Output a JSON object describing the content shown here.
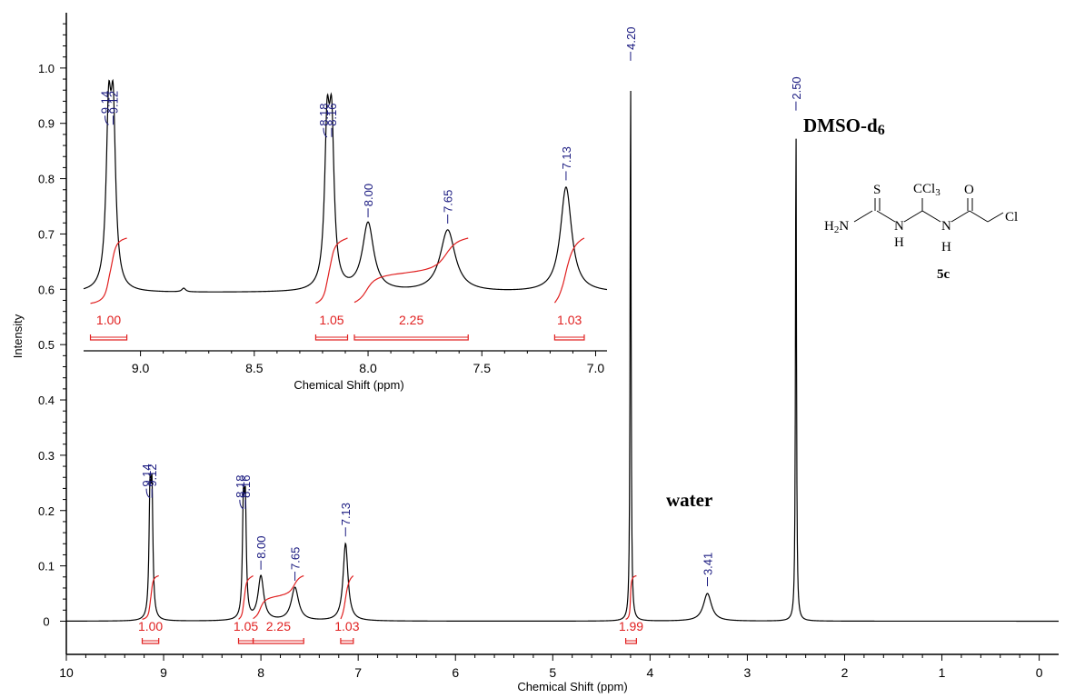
{
  "chart_data": [
    {
      "type": "line",
      "name": "main-spectrum",
      "xlabel": "Chemical Shift (ppm)",
      "ylabel": "Intensity",
      "xlim": [
        10.0,
        -0.2
      ],
      "ylim": [
        -0.06,
        1.1
      ],
      "x_ticks": [
        "10",
        "9",
        "8",
        "7",
        "6",
        "5",
        "4",
        "3",
        "2",
        "1",
        "0"
      ],
      "y_ticks": [
        "0",
        "0.1",
        "0.2",
        "0.3",
        "0.4",
        "0.5",
        "0.6",
        "0.7",
        "0.8",
        "0.9",
        "1.0"
      ],
      "peaks": [
        {
          "ppm": 9.14,
          "intensity": 0.21,
          "width": 0.012
        },
        {
          "ppm": 9.12,
          "intensity": 0.21,
          "width": 0.012
        },
        {
          "ppm": 8.18,
          "intensity": 0.19,
          "width": 0.012
        },
        {
          "ppm": 8.16,
          "intensity": 0.19,
          "width": 0.012
        },
        {
          "ppm": 8.0,
          "intensity": 0.08,
          "width": 0.035
        },
        {
          "ppm": 7.65,
          "intensity": 0.06,
          "width": 0.045
        },
        {
          "ppm": 7.13,
          "intensity": 0.14,
          "width": 0.03
        },
        {
          "ppm": 4.2,
          "intensity": 1.0,
          "width": 0.006
        },
        {
          "ppm": 3.41,
          "intensity": 0.05,
          "width": 0.05
        },
        {
          "ppm": 2.5,
          "intensity": 0.91,
          "width": 0.006
        }
      ],
      "peak_labels": [
        {
          "ppm": 9.14,
          "text": "9.14",
          "tilt": true
        },
        {
          "ppm": 9.12,
          "text": "9.12"
        },
        {
          "ppm": 8.18,
          "text": "8.18",
          "tilt": true
        },
        {
          "ppm": 8.16,
          "text": "8.16"
        },
        {
          "ppm": 8.0,
          "text": "8.00"
        },
        {
          "ppm": 7.65,
          "text": "7.65"
        },
        {
          "ppm": 7.13,
          "text": "7.13"
        },
        {
          "ppm": 4.2,
          "text": "4.20"
        },
        {
          "ppm": 3.41,
          "text": "3.41"
        },
        {
          "ppm": 2.5,
          "text": "2.50"
        }
      ],
      "integrals": [
        {
          "from": 9.22,
          "to": 9.05,
          "value": "1.00"
        },
        {
          "from": 8.23,
          "to": 8.08,
          "value": "1.05"
        },
        {
          "from": 8.08,
          "to": 7.56,
          "value": "2.25"
        },
        {
          "from": 7.18,
          "to": 7.05,
          "value": "1.03"
        },
        {
          "from": 4.25,
          "to": 4.14,
          "value": "1.99"
        }
      ],
      "annotations": {
        "water": "water",
        "solvent_main": "DMSO-d",
        "solvent_sub": "6"
      }
    },
    {
      "type": "line",
      "name": "inset-spectrum",
      "xlabel": "Chemical Shift (ppm)",
      "xlim": [
        9.25,
        6.95
      ],
      "x_ticks": [
        "9.0",
        "8.5",
        "8.0",
        "7.5",
        "7.0"
      ],
      "peaks": [
        {
          "ppm": 9.14,
          "intensity": 0.26,
          "width": 0.013
        },
        {
          "ppm": 9.12,
          "intensity": 0.26,
          "width": 0.013
        },
        {
          "ppm": 8.18,
          "intensity": 0.24,
          "width": 0.013
        },
        {
          "ppm": 8.16,
          "intensity": 0.24,
          "width": 0.013
        },
        {
          "ppm": 8.0,
          "intensity": 0.11,
          "width": 0.03
        },
        {
          "ppm": 7.65,
          "intensity": 0.1,
          "width": 0.04
        },
        {
          "ppm": 7.13,
          "intensity": 0.17,
          "width": 0.03
        },
        {
          "ppm": 8.81,
          "intensity": 0.006,
          "width": 0.01
        }
      ],
      "peak_labels": [
        {
          "ppm": 9.14,
          "text": "9.14",
          "tilt": true
        },
        {
          "ppm": 9.12,
          "text": "9.12"
        },
        {
          "ppm": 8.18,
          "text": "8.18",
          "tilt": true
        },
        {
          "ppm": 8.16,
          "text": "8.16"
        },
        {
          "ppm": 8.0,
          "text": "8.00"
        },
        {
          "ppm": 7.65,
          "text": "7.65"
        },
        {
          "ppm": 7.13,
          "text": "7.13"
        }
      ],
      "integrals": [
        {
          "from": 9.22,
          "to": 9.06,
          "value": "1.00"
        },
        {
          "from": 8.23,
          "to": 8.09,
          "value": "1.05"
        },
        {
          "from": 8.06,
          "to": 7.56,
          "value": "2.25"
        },
        {
          "from": 7.18,
          "to": 7.05,
          "value": "1.03"
        }
      ]
    }
  ],
  "structure": {
    "atoms": {
      "S": "S",
      "CCl": "CCl",
      "CCl_sub": "3",
      "O": "O",
      "H2N_H": "H",
      "H2N_sub": "2",
      "H2N_N": "N",
      "N1": "N",
      "H1": "H",
      "N2": "N",
      "H2": "H",
      "Cl": "Cl"
    },
    "compound_label": "5c"
  }
}
